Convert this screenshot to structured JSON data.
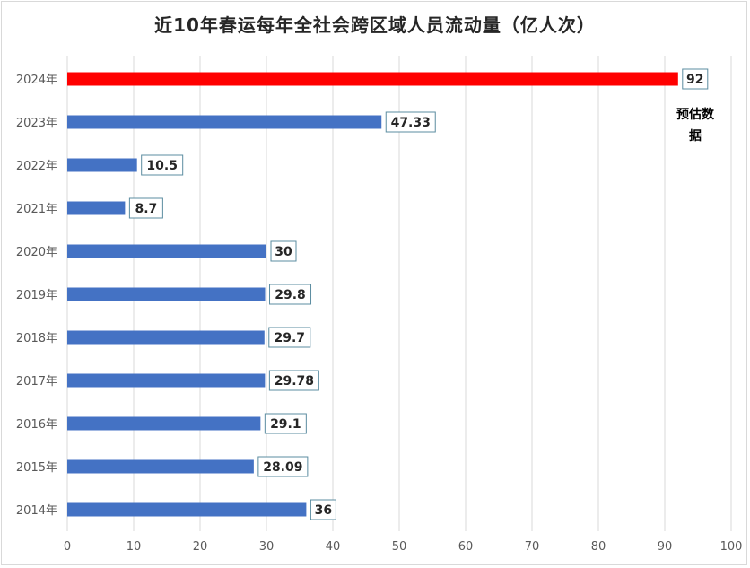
{
  "chart_data": {
    "type": "bar",
    "orientation": "horizontal",
    "title": "近10年春运每年全社会跨区域人员流动量（亿人次）",
    "annotation": "预估数据",
    "categories": [
      "2024年",
      "2023年",
      "2022年",
      "2021年",
      "2020年",
      "2019年",
      "2018年",
      "2017年",
      "2016年",
      "2015年",
      "2014年"
    ],
    "values": [
      92,
      47.33,
      10.5,
      8.7,
      30,
      29.8,
      29.7,
      29.78,
      29.1,
      28.09,
      36
    ],
    "value_labels": [
      "92",
      "47.33",
      "10.5",
      "8.7",
      "30",
      "29.8",
      "29.7",
      "29.78",
      "29.1",
      "28.09",
      "36"
    ],
    "bar_colors": [
      "#ff0000",
      "#4472c4",
      "#4472c4",
      "#4472c4",
      "#4472c4",
      "#4472c4",
      "#4472c4",
      "#4472c4",
      "#4472c4",
      "#4472c4",
      "#4472c4"
    ],
    "xlim": [
      0,
      100
    ],
    "x_ticks": [
      0,
      10,
      20,
      30,
      40,
      50,
      60,
      70,
      80,
      90,
      100
    ],
    "grid": "vertical",
    "legend": "none",
    "grid_color": "#d9d9d9",
    "axis_label_color": "#595959",
    "label_box_border": "#5b8ca0"
  }
}
